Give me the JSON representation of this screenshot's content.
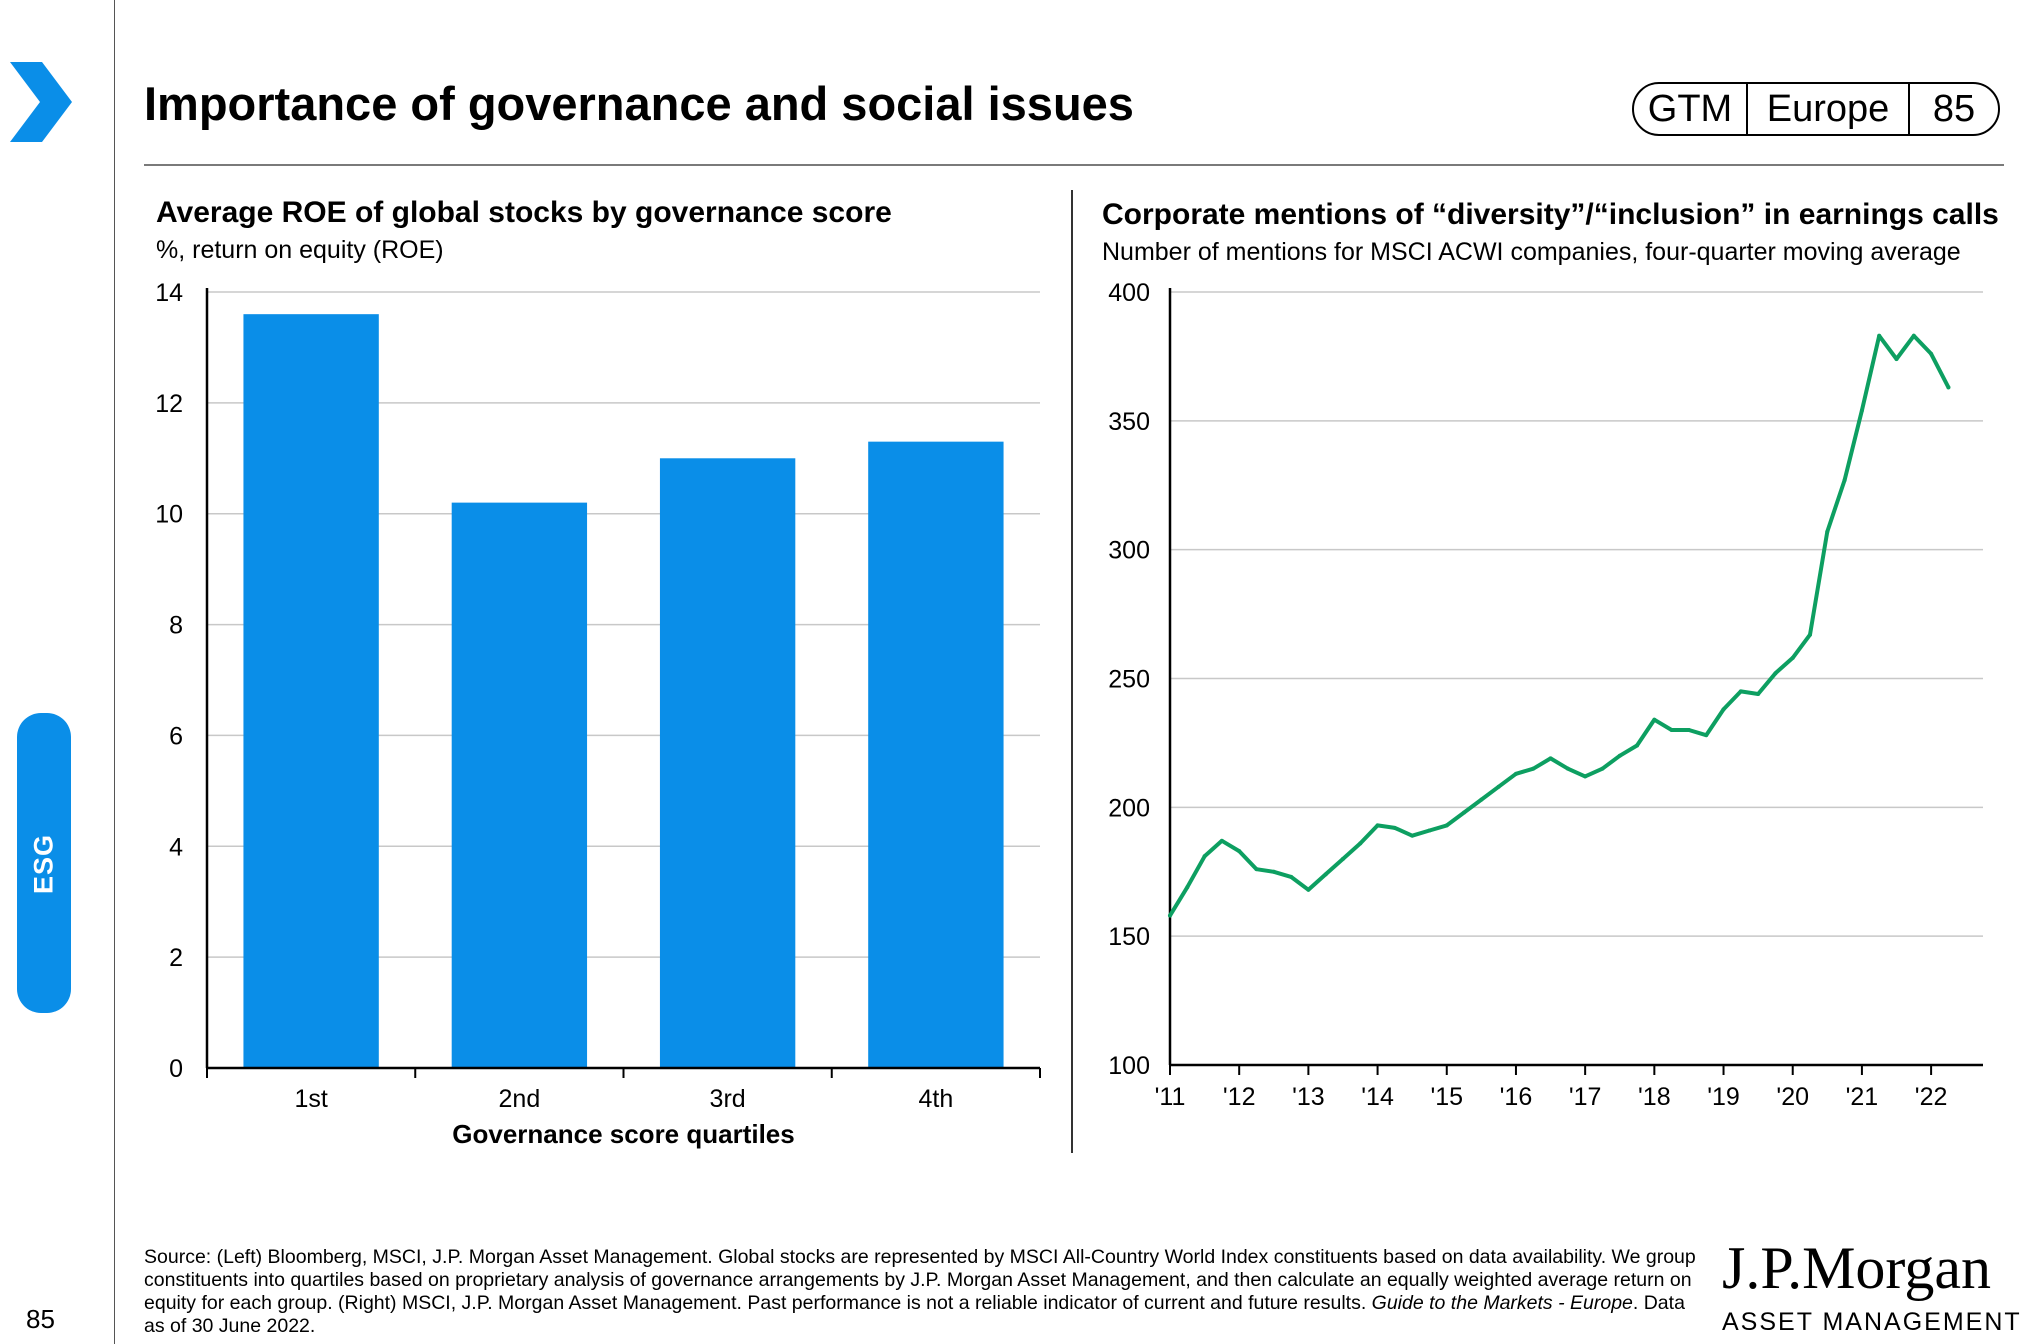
{
  "header": {
    "title": "Importance of governance and social issues",
    "badge": {
      "gtm": "GTM",
      "region": "Europe",
      "page": "85"
    }
  },
  "section_tab": "ESG",
  "colors": {
    "accent": "#0a8ee8",
    "bar": "#0a8ee8",
    "line": "#0d9f61",
    "grid": "#c8c8c8"
  },
  "icons": [
    "chevron-right-icon"
  ],
  "chart_data": [
    {
      "type": "bar",
      "title": "Average ROE of global stocks by governance score",
      "subtitle": "%, return on equity (ROE)",
      "xlabel": "Governance score quartiles",
      "ylabel": "",
      "categories": [
        "1st",
        "2nd",
        "3rd",
        "4th"
      ],
      "values": [
        13.6,
        10.2,
        11.0,
        11.3
      ],
      "ylim": [
        0,
        14
      ],
      "yticks": [
        0,
        2,
        4,
        6,
        8,
        10,
        12,
        14
      ],
      "grid": true,
      "legend": "none"
    },
    {
      "type": "line",
      "title": "Corporate mentions of “diversity”/“inclusion” in earnings calls",
      "subtitle": "Number of mentions for MSCI ACWI companies, four-quarter moving average",
      "ylim": [
        100,
        400
      ],
      "yticks": [
        100,
        150,
        200,
        250,
        300,
        350,
        400
      ],
      "xticks": [
        "'11",
        "'12",
        "'13",
        "'14",
        "'15",
        "'16",
        "'17",
        "'18",
        "'19",
        "'20",
        "'21",
        "'22"
      ],
      "xlim": [
        2011,
        2022.75
      ],
      "grid": true,
      "legend": "none",
      "series": [
        {
          "x": [
            2011.0,
            2011.25,
            2011.5,
            2011.75,
            2012.0,
            2012.25,
            2012.5,
            2012.75,
            2013.0,
            2013.25,
            2013.5,
            2013.75,
            2014.0,
            2014.25,
            2014.5,
            2014.75,
            2015.0,
            2015.25,
            2015.5,
            2015.75,
            2016.0,
            2016.25,
            2016.5,
            2016.75,
            2017.0,
            2017.25,
            2017.5,
            2017.75,
            2018.0,
            2018.25,
            2018.5,
            2018.75,
            2019.0,
            2019.25,
            2019.5,
            2019.75,
            2020.0,
            2020.25,
            2020.5,
            2020.75,
            2021.0,
            2021.25,
            2021.5,
            2021.75,
            2022.0,
            2022.25
          ],
          "values": [
            158,
            169,
            181,
            187,
            183,
            176,
            175,
            173,
            168,
            174,
            180,
            186,
            193,
            192,
            189,
            191,
            193,
            198,
            203,
            208,
            213,
            215,
            219,
            215,
            212,
            215,
            220,
            224,
            234,
            230,
            230,
            228,
            238,
            245,
            244,
            252,
            258,
            267,
            307,
            327,
            354,
            383,
            374,
            383,
            376,
            363
          ]
        }
      ]
    }
  ],
  "footer": {
    "source_main": "Source: (Left) Bloomberg, MSCI, J.P. Morgan Asset Management. Global stocks are represented by MSCI All-Country World Index constituents based on data availability. We group constituents into quartiles based on proprietary analysis of governance arrangements by J.P. Morgan Asset Management, and then calculate an equally weighted average return on equity for each group. (Right) MSCI, J.P. Morgan Asset Management. Past performance is not a reliable indicator of current and future results. ",
    "source_italic": "Guide to the Markets - Europe",
    "source_end": ". Data as of 30 June 2022.",
    "page_number": "85"
  },
  "logo": {
    "name": "J.P.Morgan",
    "sub": "ASSET MANAGEMENT"
  }
}
